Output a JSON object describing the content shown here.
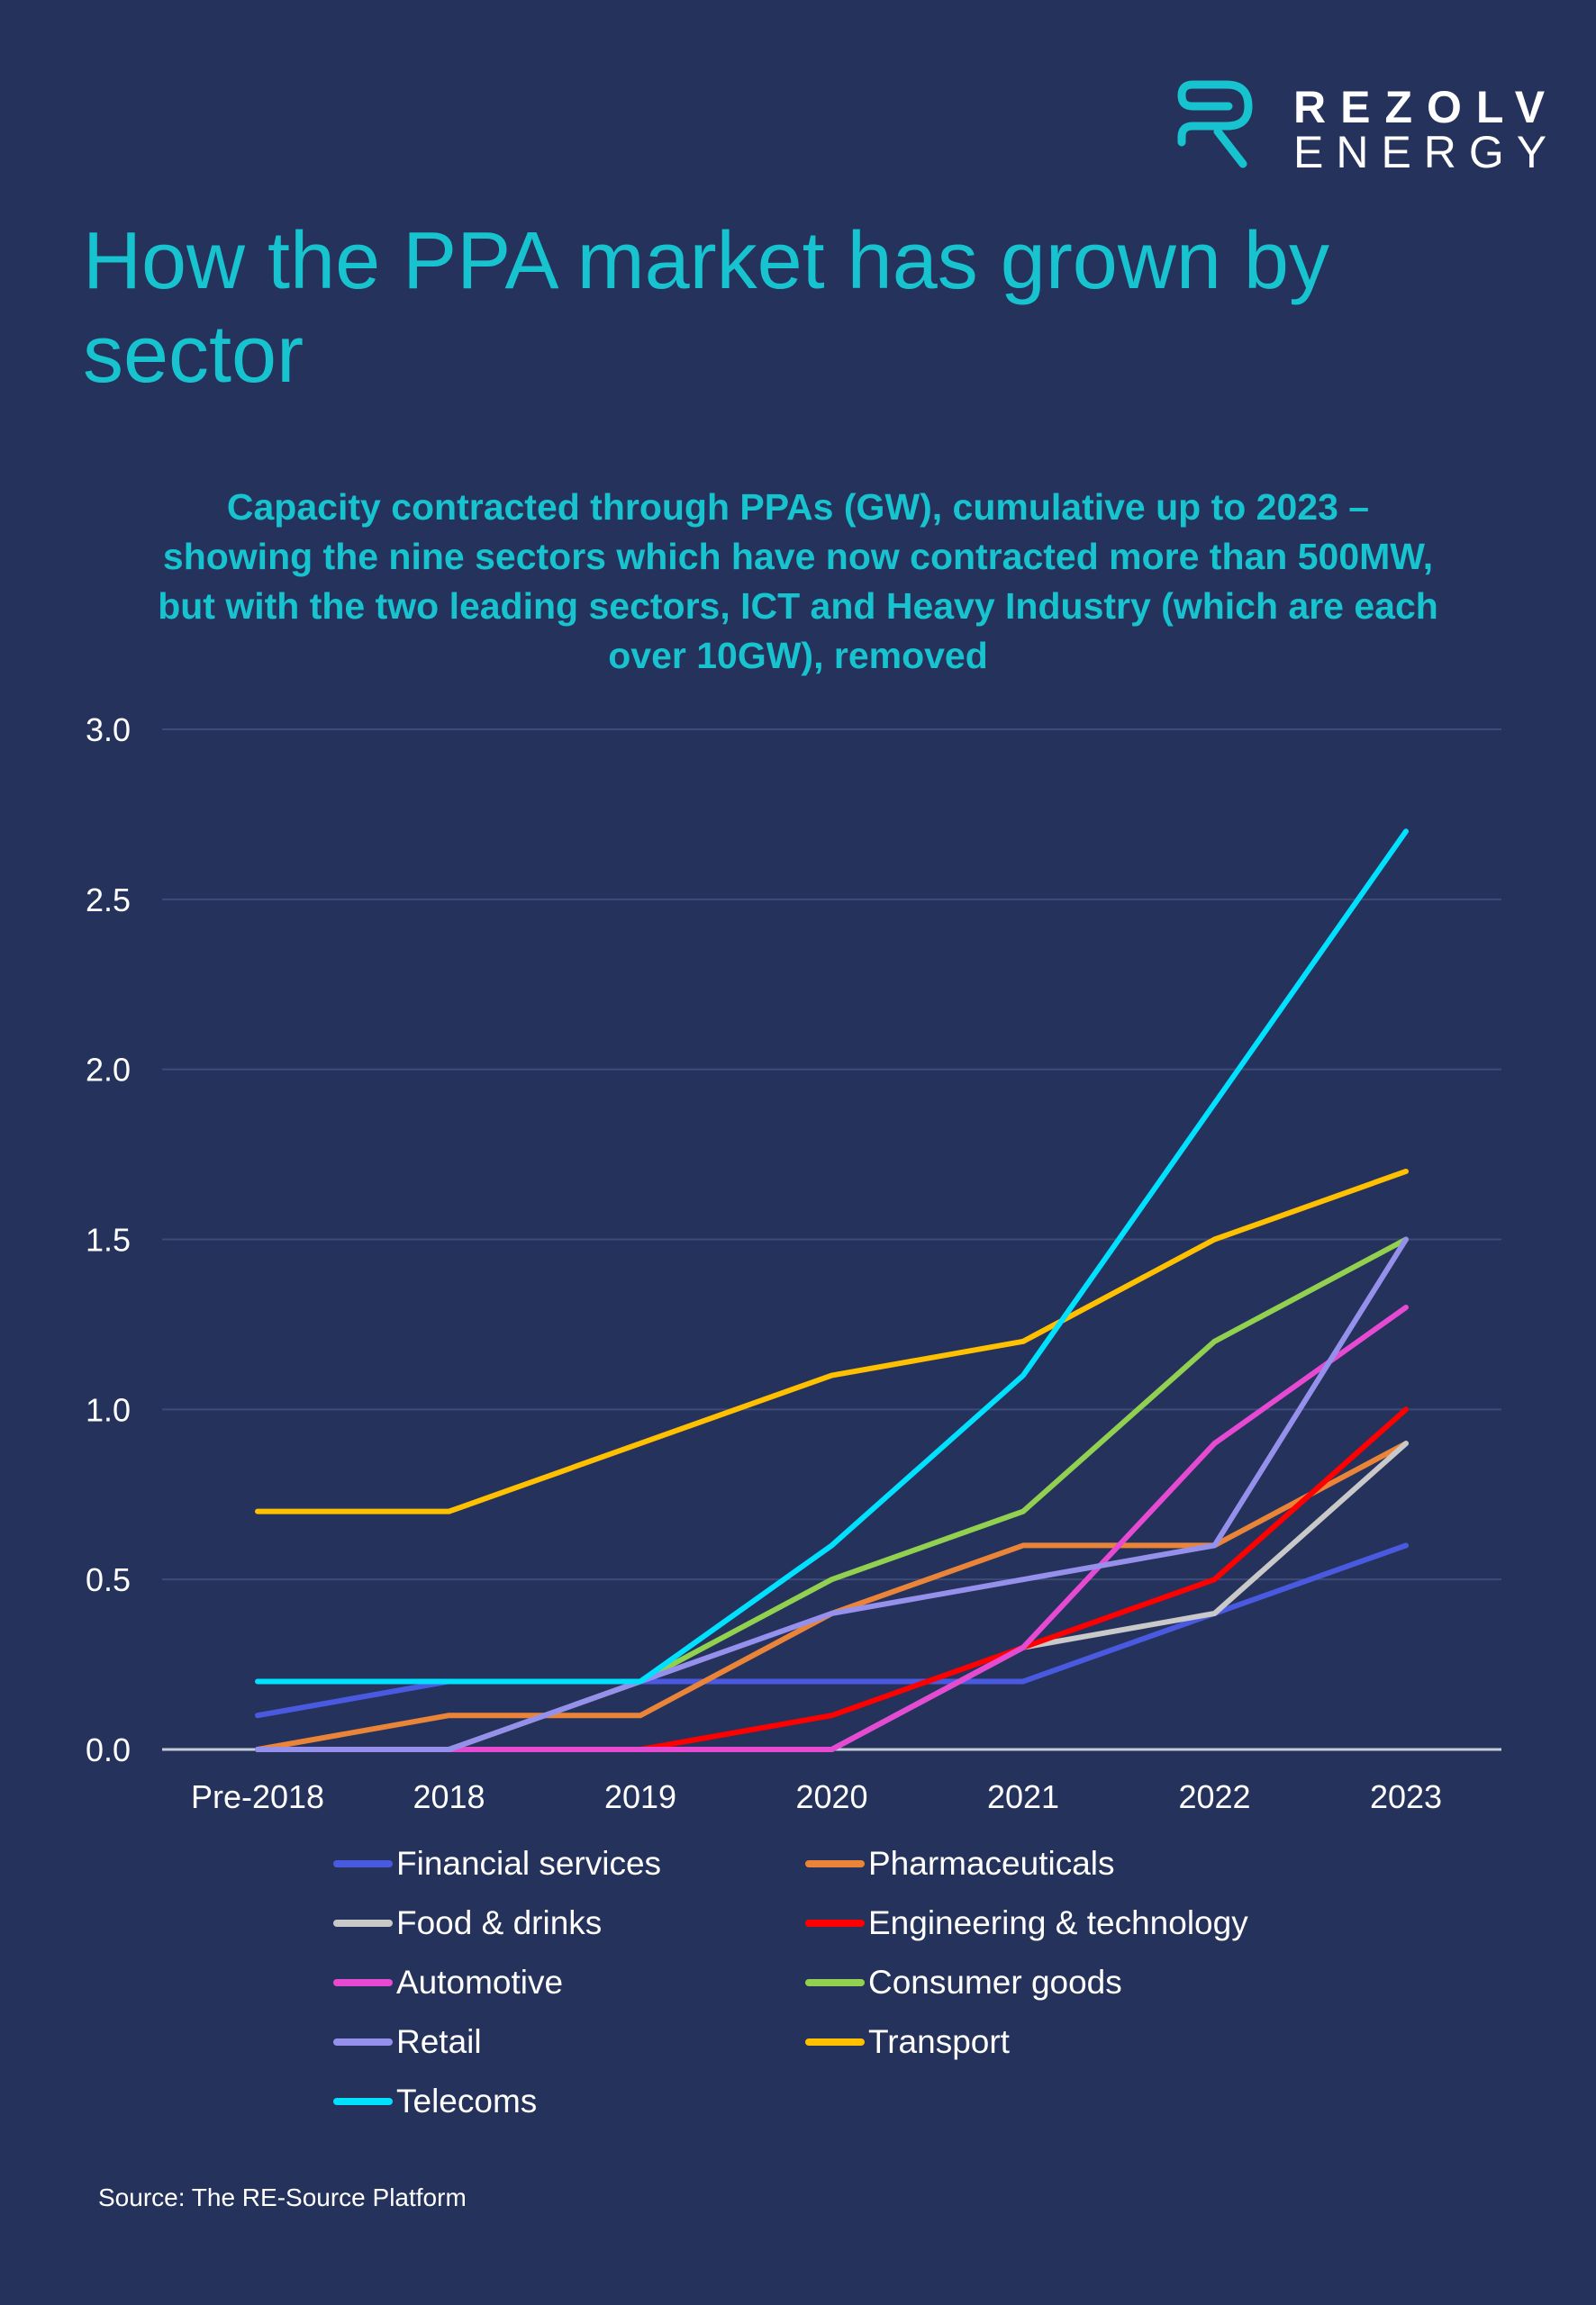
{
  "brand": {
    "name_line1": "REZOLV",
    "name_line2": "ENERGY",
    "logo_icon": "r-logo-icon",
    "accent_color": "#17c3cf"
  },
  "title": "How the PPA market has grown by sector",
  "subtitle": "Capacity contracted through PPAs (GW), cumulative up to 2023 – showing the nine sectors which have now contracted more than 500MW, but with the two leading sectors, ICT and Heavy Industry (which are each over 10GW), removed",
  "source": "Source: The RE-Source Platform",
  "chart_data": {
    "type": "line",
    "title": "Capacity contracted through PPAs (GW), cumulative up to 2023",
    "xlabel": "",
    "ylabel": "GW",
    "categories": [
      "Pre-2018",
      "2018",
      "2019",
      "2020",
      "2021",
      "2022",
      "2023"
    ],
    "ylim": [
      0,
      3.0
    ],
    "yticks": [
      "0.0",
      "0.5",
      "1.0",
      "1.5",
      "2.0",
      "2.5",
      "3.0"
    ],
    "grid": true,
    "legend_position": "bottom",
    "series": [
      {
        "name": "Financial services",
        "color": "#4a5ae0",
        "values": [
          0.1,
          0.2,
          0.2,
          0.2,
          0.2,
          0.4,
          0.6
        ]
      },
      {
        "name": "Pharmaceuticals",
        "color": "#ea8438",
        "values": [
          0.0,
          0.1,
          0.1,
          0.4,
          0.6,
          0.6,
          0.9
        ]
      },
      {
        "name": "Food & drinks",
        "color": "#c9c9c9",
        "values": [
          0.0,
          0.0,
          0.0,
          0.0,
          0.3,
          0.4,
          0.9
        ]
      },
      {
        "name": "Engineering & technology",
        "color": "#ff0000",
        "values": [
          0.0,
          0.0,
          0.0,
          0.1,
          0.3,
          0.5,
          1.0
        ]
      },
      {
        "name": "Automotive",
        "color": "#e64ad2",
        "values": [
          0.0,
          0.0,
          0.0,
          0.0,
          0.3,
          0.9,
          1.3
        ]
      },
      {
        "name": "Consumer goods",
        "color": "#92d050",
        "values": [
          0.0,
          0.0,
          0.2,
          0.5,
          0.7,
          1.2,
          1.5
        ]
      },
      {
        "name": "Retail",
        "color": "#9590ec",
        "values": [
          0.0,
          0.0,
          0.2,
          0.4,
          0.5,
          0.6,
          1.5
        ]
      },
      {
        "name": "Transport",
        "color": "#ffc000",
        "values": [
          0.7,
          0.7,
          0.9,
          1.1,
          1.2,
          1.5,
          1.7
        ]
      },
      {
        "name": "Telecoms",
        "color": "#00e0ff",
        "values": [
          0.2,
          0.2,
          0.2,
          0.6,
          1.1,
          1.9,
          2.7
        ]
      }
    ]
  }
}
